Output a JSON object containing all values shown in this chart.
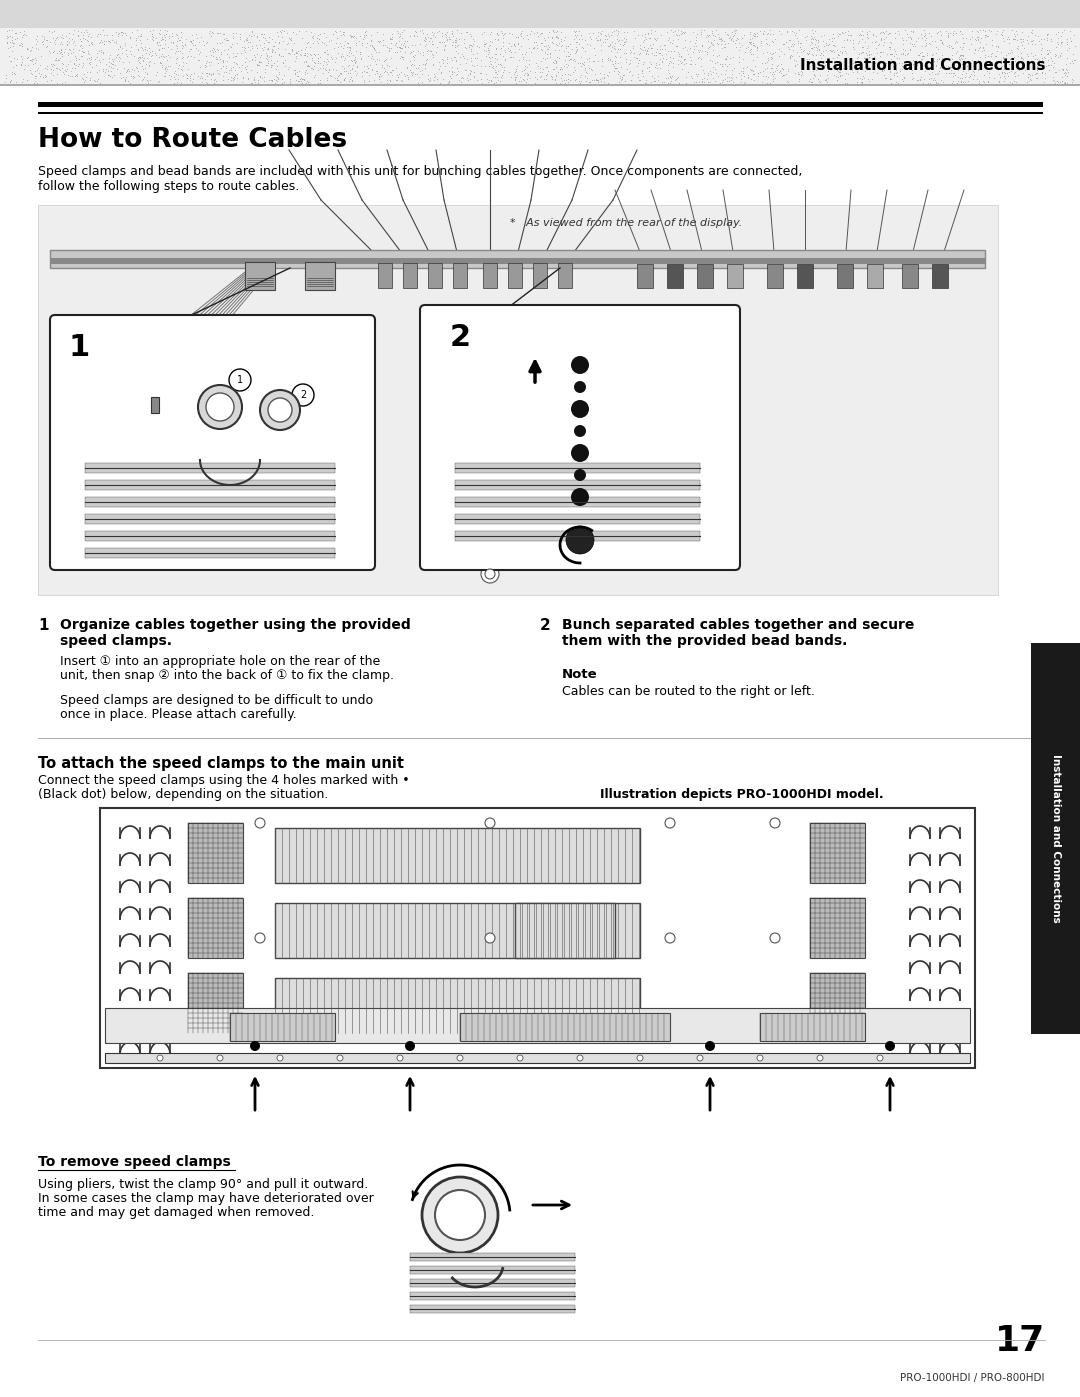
{
  "page_bg": "#ffffff",
  "header_text": "Installation and Connections",
  "section_title": "How to Route Cables",
  "intro_line1": "Speed clamps and bead bands are included with this unit for bunching cables together. Once components are connected,",
  "intro_line2": "follow the following steps to route cables.",
  "asterisk_note": "*   As viewed from the rear of the display.",
  "step1_num": "1",
  "step1_bold1": "Organize cables together using the provided",
  "step1_bold2": "speed clamps.",
  "step1_body1": "Insert ① into an appropriate hole on the rear of the",
  "step1_body2": "unit, then snap ② into the back of ① to fix the clamp.",
  "step1_body3": "Speed clamps are designed to be difficult to undo",
  "step1_body4": "once in place. Please attach carefully.",
  "step2_num": "2",
  "step2_bold1": "Bunch separated cables together and secure",
  "step2_bold2": "them with the provided bead bands.",
  "note_title": "Note",
  "note_body": "Cables can be routed to the right or left.",
  "attach_title": "To attach the speed clamps to the main unit",
  "attach_body1": "Connect the speed clamps using the 4 holes marked with •",
  "attach_body2": "(Black dot) below, depending on the situation.",
  "illus_label": "Illustration depicts PRO-1000HDI model.",
  "remove_title": "To remove speed clamps",
  "remove_body1": "Using pliers, twist the clamp 90° and pull it outward.",
  "remove_body2": "In some cases the clamp may have deteriorated over",
  "remove_body3": "time and may get damaged when removed.",
  "page_number": "17",
  "model_text": "PRO-1000HDI / PRO-800HDI",
  "side_label": "Installation and Connections"
}
